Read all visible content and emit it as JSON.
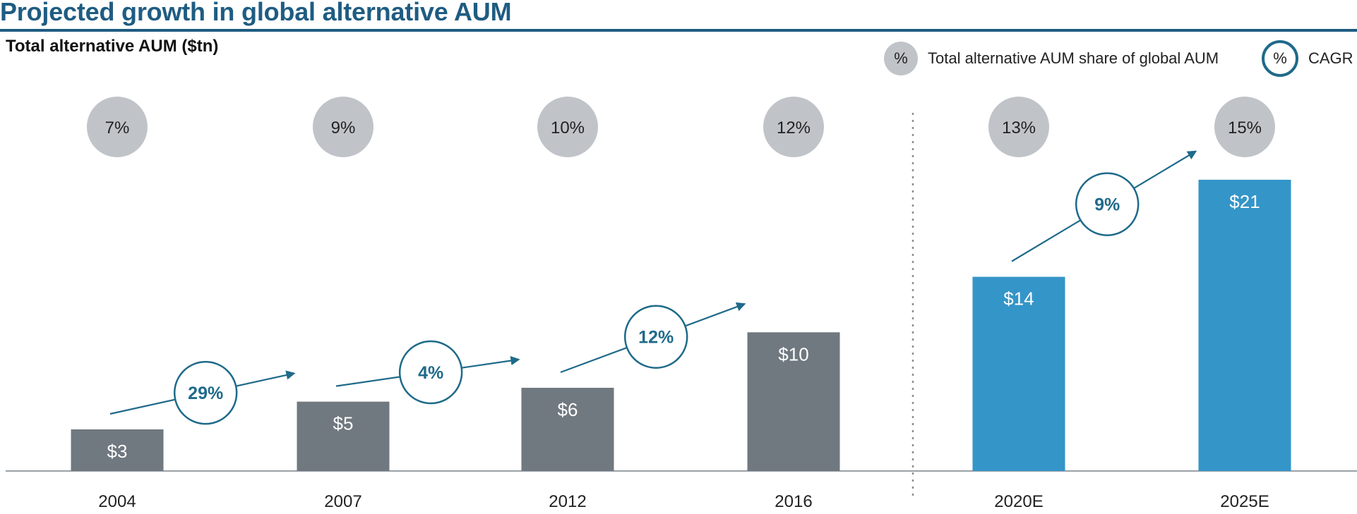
{
  "title": "Projected growth in global alternative AUM",
  "chart_data": {
    "type": "bar",
    "title": "Projected growth in global alternative AUM",
    "ylabel": "Total alternative AUM ($tn)",
    "xlabel": "",
    "categories": [
      "2004",
      "2007",
      "2012",
      "2016",
      "2020E",
      "2025E"
    ],
    "values": [
      3,
      5,
      6,
      10,
      14,
      21
    ],
    "value_labels": [
      "$3",
      "$5",
      "$6",
      "$10",
      "$14",
      "$21"
    ],
    "projected": [
      false,
      false,
      false,
      false,
      true,
      true
    ],
    "share_of_global": [
      "7%",
      "9%",
      "10%",
      "12%",
      "13%",
      "15%"
    ],
    "cagr": [
      {
        "from": "2004",
        "to": "2007",
        "label": "29%"
      },
      {
        "from": "2007",
        "to": "2012",
        "label": "4%"
      },
      {
        "from": "2012",
        "to": "2016",
        "label": "12%"
      },
      {
        "from": "2020E",
        "to": "2025E",
        "label": "9%"
      }
    ],
    "legend": {
      "share_symbol": "%",
      "share_label": "Total alternative AUM share of global AUM",
      "cagr_symbol": "%",
      "cagr_label": "CAGR"
    },
    "ylim": [
      0,
      21
    ],
    "grid": false,
    "colors": {
      "historical": "#707880",
      "projected": "#3495c8",
      "circle": "#c0c4c9",
      "accent": "#1f6a8a",
      "title": "#1f5c82"
    }
  }
}
